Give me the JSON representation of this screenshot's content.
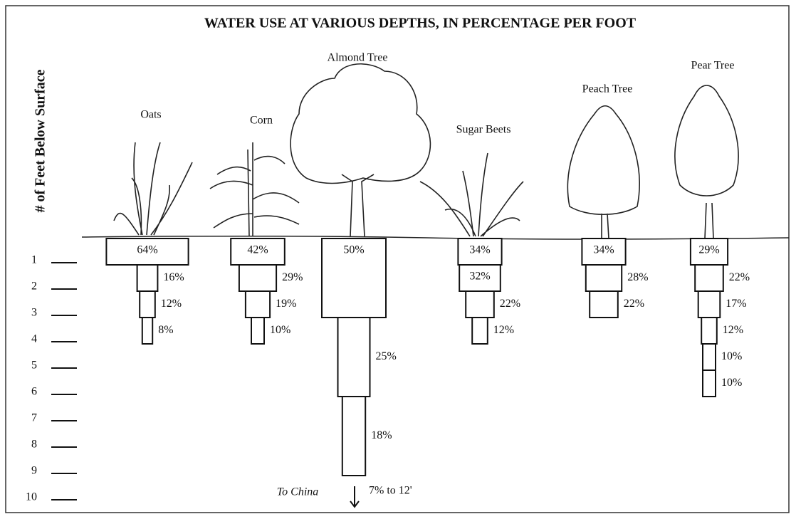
{
  "chart_data": {
    "type": "depth-profile",
    "title": "WATER USE AT VARIOUS DEPTHS, IN PERCENTAGE PER FOOT",
    "ylabel": "# of Feet Below Surface",
    "ylim": [
      0,
      10
    ],
    "yticks": [
      1,
      2,
      3,
      4,
      5,
      6,
      7,
      8,
      9,
      10
    ],
    "plants": [
      {
        "name": "Oats",
        "values": [
          64,
          16,
          12,
          8
        ],
        "value_labels": [
          "64%",
          "16%",
          "12%",
          "8%"
        ],
        "depths": [
          [
            0,
            1
          ],
          [
            1,
            2
          ],
          [
            2,
            3
          ],
          [
            3,
            4
          ]
        ]
      },
      {
        "name": "Corn",
        "values": [
          42,
          29,
          19,
          10
        ],
        "value_labels": [
          "42%",
          "29%",
          "19%",
          "10%"
        ],
        "depths": [
          [
            0,
            1
          ],
          [
            1,
            2
          ],
          [
            2,
            3
          ],
          [
            3,
            4
          ]
        ]
      },
      {
        "name": "Almond Tree",
        "values": [
          50,
          25,
          18
        ],
        "value_labels": [
          "50%",
          "25%",
          "18%"
        ],
        "depths": [
          [
            0,
            3
          ],
          [
            3,
            6
          ],
          [
            6,
            9
          ]
        ]
      },
      {
        "name": "Sugar Beets",
        "values": [
          34,
          32,
          22,
          12
        ],
        "value_labels": [
          "34%",
          "32%",
          "22%",
          "12%"
        ],
        "depths": [
          [
            0,
            1
          ],
          [
            1,
            2
          ],
          [
            2,
            3
          ],
          [
            3,
            4
          ]
        ]
      },
      {
        "name": "Peach Tree",
        "values": [
          34,
          28,
          22
        ],
        "value_labels": [
          "34%",
          "28%",
          "22%"
        ],
        "depths": [
          [
            0,
            1
          ],
          [
            1,
            2
          ],
          [
            2,
            3
          ]
        ]
      },
      {
        "name": "Pear Tree",
        "values": [
          29,
          22,
          17,
          12,
          10,
          10
        ],
        "value_labels": [
          "29%",
          "22%",
          "17%",
          "12%",
          "10%",
          "10%"
        ],
        "depths": [
          [
            0,
            1
          ],
          [
            1,
            2
          ],
          [
            2,
            3
          ],
          [
            3,
            4
          ],
          [
            4,
            5
          ],
          [
            5,
            6
          ]
        ]
      }
    ],
    "note_left": "To China",
    "note_right": "7% to 12'"
  }
}
